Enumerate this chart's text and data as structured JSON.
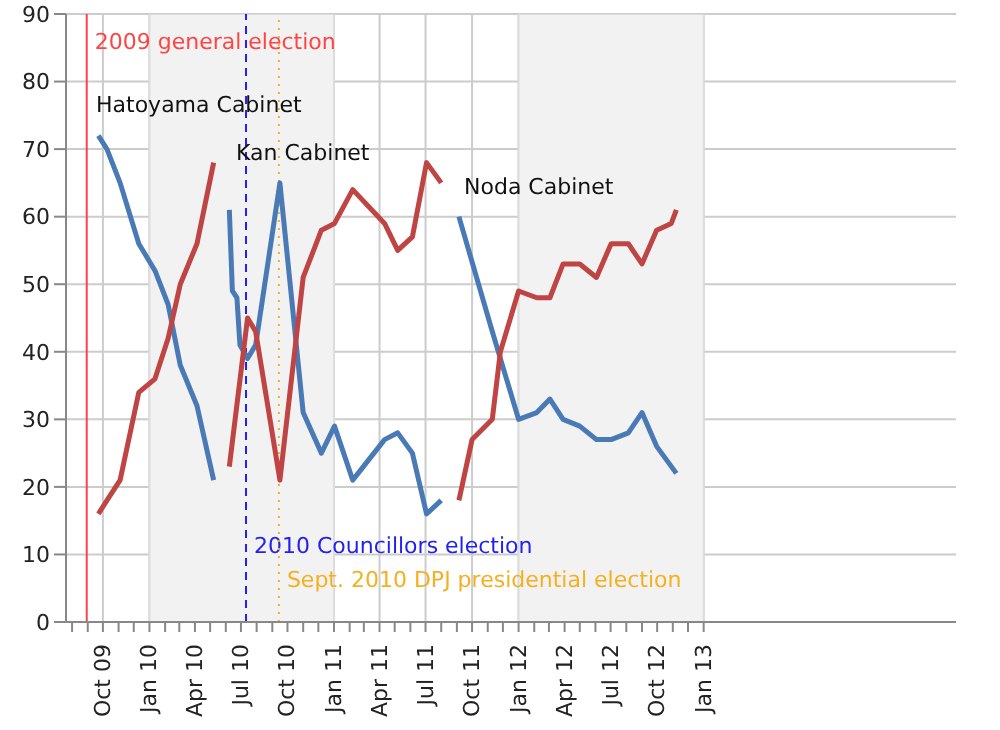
{
  "chart_data": {
    "type": "line",
    "xlim": [
      "2009-07-20",
      "2014-05-15"
    ],
    "xticks": [
      {
        "value": "2009-08",
        "label": null
      },
      {
        "value": "2009-09",
        "label": null
      },
      {
        "value": "2009-10",
        "label": "Oct 09"
      },
      {
        "value": "2009-11",
        "label": null
      },
      {
        "value": "2009-12",
        "label": null
      },
      {
        "value": "2010-01",
        "label": "Jan 10"
      },
      {
        "value": "2010-02",
        "label": null
      },
      {
        "value": "2010-03",
        "label": null
      },
      {
        "value": "2010-04",
        "label": "Apr 10"
      },
      {
        "value": "2010-05",
        "label": null
      },
      {
        "value": "2010-06",
        "label": null
      },
      {
        "value": "2010-07",
        "label": "Jul 10"
      },
      {
        "value": "2010-08",
        "label": null
      },
      {
        "value": "2010-09",
        "label": null
      },
      {
        "value": "2010-10",
        "label": "Oct 10"
      },
      {
        "value": "2010-11",
        "label": null
      },
      {
        "value": "2010-12",
        "label": null
      },
      {
        "value": "2011-01",
        "label": "Jan 11"
      },
      {
        "value": "2011-02",
        "label": null
      },
      {
        "value": "2011-03",
        "label": null
      },
      {
        "value": "2011-04",
        "label": "Apr 11"
      },
      {
        "value": "2011-05",
        "label": null
      },
      {
        "value": "2011-06",
        "label": null
      },
      {
        "value": "2011-07",
        "label": "Jul 11"
      },
      {
        "value": "2011-08",
        "label": null
      },
      {
        "value": "2011-09",
        "label": null
      },
      {
        "value": "2011-10",
        "label": "Oct 11"
      },
      {
        "value": "2011-11",
        "label": null
      },
      {
        "value": "2011-12",
        "label": null
      },
      {
        "value": "2012-01",
        "label": "Jan 12"
      },
      {
        "value": "2012-02",
        "label": null
      },
      {
        "value": "2012-03",
        "label": null
      },
      {
        "value": "2012-04",
        "label": "Apr 12"
      },
      {
        "value": "2012-05",
        "label": null
      },
      {
        "value": "2012-06",
        "label": null
      },
      {
        "value": "2012-07",
        "label": "Jul 12"
      },
      {
        "value": "2012-08",
        "label": null
      },
      {
        "value": "2012-09",
        "label": null
      },
      {
        "value": "2012-10",
        "label": "Oct 12"
      },
      {
        "value": "2012-11",
        "label": null
      },
      {
        "value": "2012-12",
        "label": null
      },
      {
        "value": "2013-01",
        "label": "Jan 13"
      }
    ],
    "ylim": [
      0,
      90
    ],
    "yticks": [
      0,
      10,
      20,
      30,
      40,
      50,
      60,
      70,
      80,
      90
    ],
    "grid": true,
    "series": [
      {
        "color": "#4a7ab5",
        "x": [
          "2009-09-22",
          "2009-10-09",
          "2009-11-04",
          "2009-12-11",
          "2010-01-12",
          "2010-02-07",
          "2010-03-03",
          "2010-04-05",
          "2010-05-08",
          "2010-05-25",
          "2010-06-08",
          "2010-06-14",
          "2010-06-23",
          "2010-06-29",
          "2010-07-14",
          "2010-07-30",
          "2010-09-16",
          "2010-11-01",
          "2010-12-07",
          "2011-01-02",
          "2011-02-07",
          "2011-04-11",
          "2011-05-07",
          "2011-06-05",
          "2011-07-03",
          "2011-08-01",
          "2011-08-20",
          "2011-09-05",
          "2011-11-10",
          "2012-01-01",
          "2012-02-06",
          "2012-03-03",
          "2012-03-29",
          "2012-05-01",
          "2012-06-03",
          "2012-07-02",
          "2012-08-05",
          "2012-09-01",
          "2012-09-30",
          "2012-11-08"
        ],
        "values": [
          72,
          70,
          65,
          56,
          52,
          47,
          38,
          32,
          21,
          null,
          61,
          49,
          48,
          41,
          39,
          41,
          65,
          31,
          25,
          29,
          21,
          27,
          28,
          25,
          16,
          18,
          null,
          60,
          43,
          30,
          31,
          33,
          30,
          29,
          27,
          27,
          28,
          31,
          26,
          22
        ]
      },
      {
        "color": "#bf4444",
        "x": [
          "2009-09-22",
          "2009-10-09",
          "2009-11-04",
          "2009-12-11",
          "2010-01-12",
          "2010-02-07",
          "2010-03-03",
          "2010-04-05",
          "2010-05-08",
          "2010-05-25",
          "2010-06-08",
          "2010-07-14",
          "2010-07-30",
          "2010-09-16",
          "2010-11-01",
          "2010-12-07",
          "2011-01-02",
          "2011-02-07",
          "2011-04-11",
          "2011-05-07",
          "2011-06-05",
          "2011-07-03",
          "2011-08-01",
          "2011-08-20",
          "2011-09-05",
          "2011-10-01",
          "2011-11-10",
          "2011-11-26",
          "2012-01-01",
          "2012-02-06",
          "2012-03-03",
          "2012-03-29",
          "2012-05-01",
          "2012-06-03",
          "2012-07-02",
          "2012-08-05",
          "2012-09-01",
          "2012-09-30",
          "2012-10-29",
          "2012-11-08"
        ],
        "values": [
          16,
          18,
          21,
          34,
          36,
          42,
          50,
          56,
          68,
          null,
          23,
          45,
          43,
          21,
          51,
          58,
          59,
          64,
          59,
          55,
          57,
          68,
          65,
          null,
          18,
          27,
          30,
          40,
          49,
          48,
          48,
          53,
          53,
          51,
          56,
          56,
          53,
          58,
          59,
          61
        ]
      }
    ],
    "bands": [
      {
        "axis": "x",
        "from": "2010-01",
        "to": "2011-01",
        "color": "#f2f2f2"
      },
      {
        "axis": "x",
        "from": "2012-01",
        "to": "2013-01",
        "color": "#f2f2f2"
      }
    ],
    "ref_lines": [
      {
        "axis": "x",
        "value": "2009-08-30",
        "label": "2009 general election",
        "color": "#ff4444",
        "line_style": "solid"
      },
      {
        "axis": "x",
        "value": "2010-07-11",
        "label": "2010 Councillors election",
        "color": "#2222ee",
        "line_style": "dashed"
      },
      {
        "axis": "x",
        "value": "2010-09-14",
        "label": "Sept. 2010 DPJ presidential election",
        "color": "#f5b020",
        "line_style": "dotted"
      }
    ],
    "annotations": [
      "Hatoyama Cabinet",
      "Kan Cabinet",
      "Noda Cabinet"
    ]
  }
}
